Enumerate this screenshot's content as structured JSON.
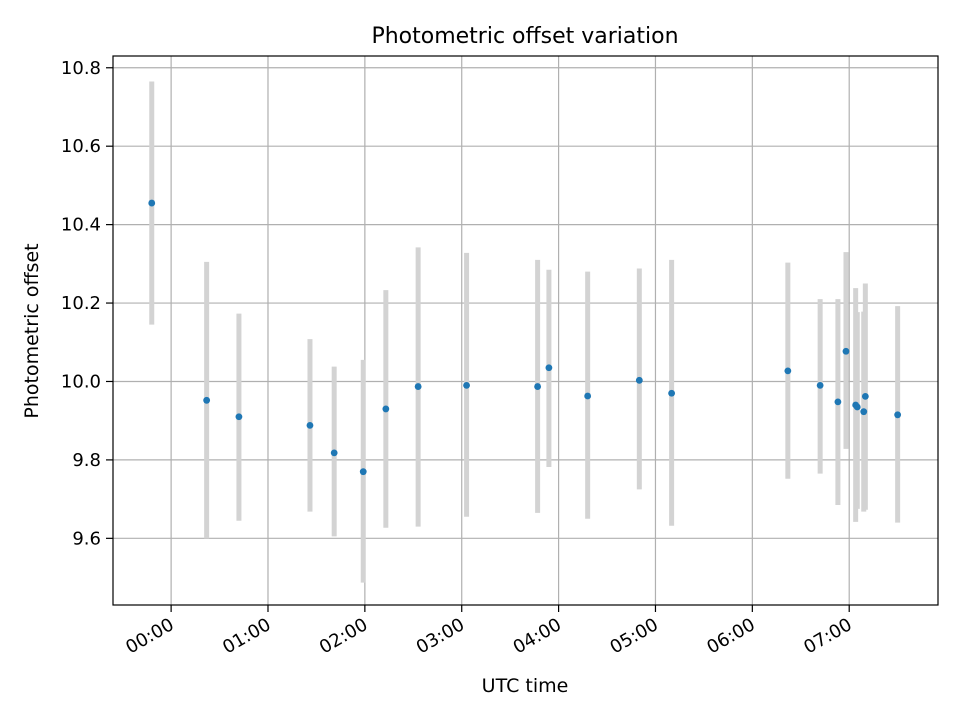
{
  "chart_data": {
    "type": "scatter",
    "title": "Photometric offset variation",
    "xlabel": "UTC time",
    "ylabel": "Photometric offset",
    "xlim": [
      "23:24",
      "07:55"
    ],
    "ylim": [
      9.43,
      10.83
    ],
    "x_ticks": [
      "00:00",
      "01:00",
      "02:00",
      "03:00",
      "04:00",
      "05:00",
      "06:00",
      "07:00"
    ],
    "y_ticks": [
      9.6,
      9.8,
      10.0,
      10.2,
      10.4,
      10.6,
      10.8
    ],
    "grid": true,
    "legend": "none",
    "point_color": "#1f77b4",
    "errorbar_color": "#d3d3d3",
    "points": [
      {
        "time": "23:48",
        "offset": 10.455,
        "low": 10.145,
        "high": 10.765
      },
      {
        "time": "00:22",
        "offset": 9.952,
        "low": 9.6,
        "high": 10.305
      },
      {
        "time": "00:42",
        "offset": 9.91,
        "low": 9.645,
        "high": 10.173
      },
      {
        "time": "01:26",
        "offset": 9.888,
        "low": 9.668,
        "high": 10.108
      },
      {
        "time": "01:41",
        "offset": 9.818,
        "low": 9.605,
        "high": 10.038
      },
      {
        "time": "01:59",
        "offset": 9.77,
        "low": 9.487,
        "high": 10.055
      },
      {
        "time": "02:13",
        "offset": 9.93,
        "low": 9.627,
        "high": 10.233
      },
      {
        "time": "02:33",
        "offset": 9.987,
        "low": 9.63,
        "high": 10.342
      },
      {
        "time": "03:03",
        "offset": 9.99,
        "low": 9.655,
        "high": 10.328
      },
      {
        "time": "03:47",
        "offset": 9.987,
        "low": 9.665,
        "high": 10.31
      },
      {
        "time": "03:54",
        "offset": 10.035,
        "low": 9.782,
        "high": 10.285
      },
      {
        "time": "04:18",
        "offset": 9.963,
        "low": 9.65,
        "high": 10.28
      },
      {
        "time": "04:50",
        "offset": 10.003,
        "low": 9.725,
        "high": 10.288
      },
      {
        "time": "05:10",
        "offset": 9.97,
        "low": 9.632,
        "high": 10.31
      },
      {
        "time": "06:22",
        "offset": 10.027,
        "low": 9.752,
        "high": 10.303
      },
      {
        "time": "06:42",
        "offset": 9.99,
        "low": 9.765,
        "high": 10.21
      },
      {
        "time": "06:53",
        "offset": 9.948,
        "low": 9.685,
        "high": 10.21
      },
      {
        "time": "06:58",
        "offset": 10.077,
        "low": 9.828,
        "high": 10.33
      },
      {
        "time": "07:04",
        "offset": 9.94,
        "low": 9.642,
        "high": 10.238
      },
      {
        "time": "07:05",
        "offset": 9.935,
        "low": 9.675,
        "high": 10.177
      },
      {
        "time": "07:09",
        "offset": 9.923,
        "low": 9.668,
        "high": 10.178
      },
      {
        "time": "07:10",
        "offset": 9.962,
        "low": 9.673,
        "high": 10.25
      },
      {
        "time": "07:30",
        "offset": 9.915,
        "low": 9.64,
        "high": 10.192
      }
    ]
  }
}
